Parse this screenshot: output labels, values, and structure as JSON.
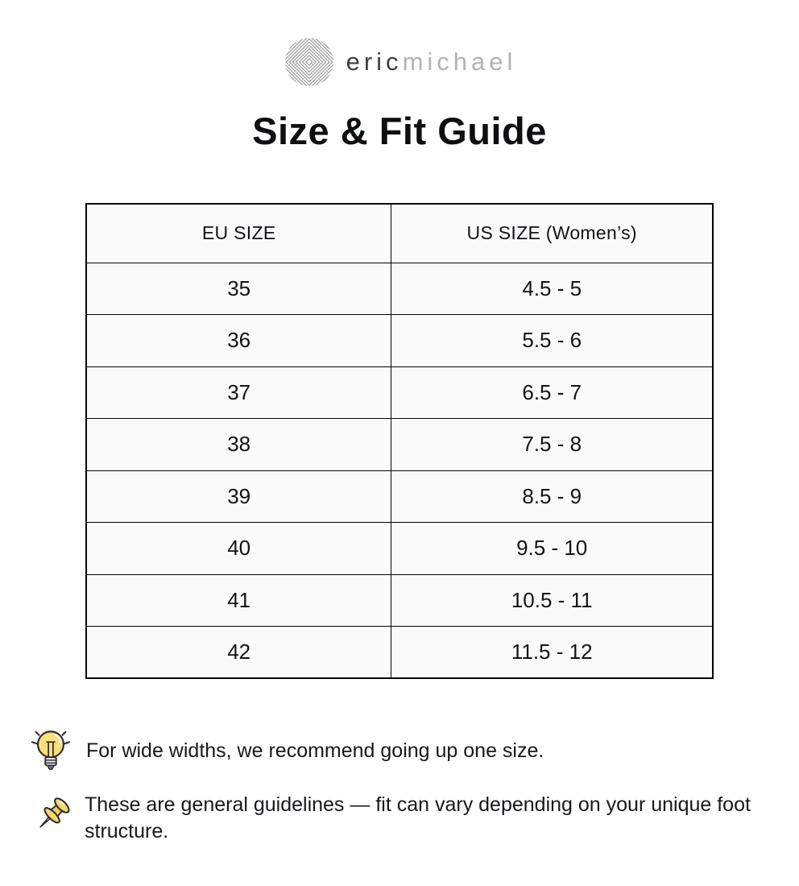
{
  "logo": {
    "text_primary": "eric",
    "text_secondary": "michael"
  },
  "title": "Size & Fit Guide",
  "table": {
    "headers": [
      "EU SIZE",
      "US SIZE (Women’s)"
    ],
    "rows": [
      [
        "35",
        "4.5 - 5"
      ],
      [
        "36",
        "5.5 - 6"
      ],
      [
        "37",
        "6.5 - 7"
      ],
      [
        "38",
        "7.5 - 8"
      ],
      [
        "39",
        "8.5 - 9"
      ],
      [
        "40",
        "9.5 - 10"
      ],
      [
        "41",
        "10.5 - 11"
      ],
      [
        "42",
        "11.5 - 12"
      ]
    ]
  },
  "notes": [
    {
      "icon": "lightbulb-icon",
      "text": "For wide widths, we recommend going up one size."
    },
    {
      "icon": "pushpin-icon",
      "text": "These are general guidelines — fit can vary depending on your unique foot structure."
    }
  ],
  "colors": {
    "page_background": "#ffffff",
    "table_cell_background": "#fafafa",
    "table_border": "#050505",
    "title_text": "#0e0f11",
    "logo_primary": "#3f3f41",
    "logo_secondary": "#b3b3b5",
    "logo_mark_lines": "#8f8f8f",
    "bulb_yellow": "#fbdf7d",
    "pin_yellow": "#f6d66f",
    "bulb_tip_purple": "#6d68a8"
  }
}
